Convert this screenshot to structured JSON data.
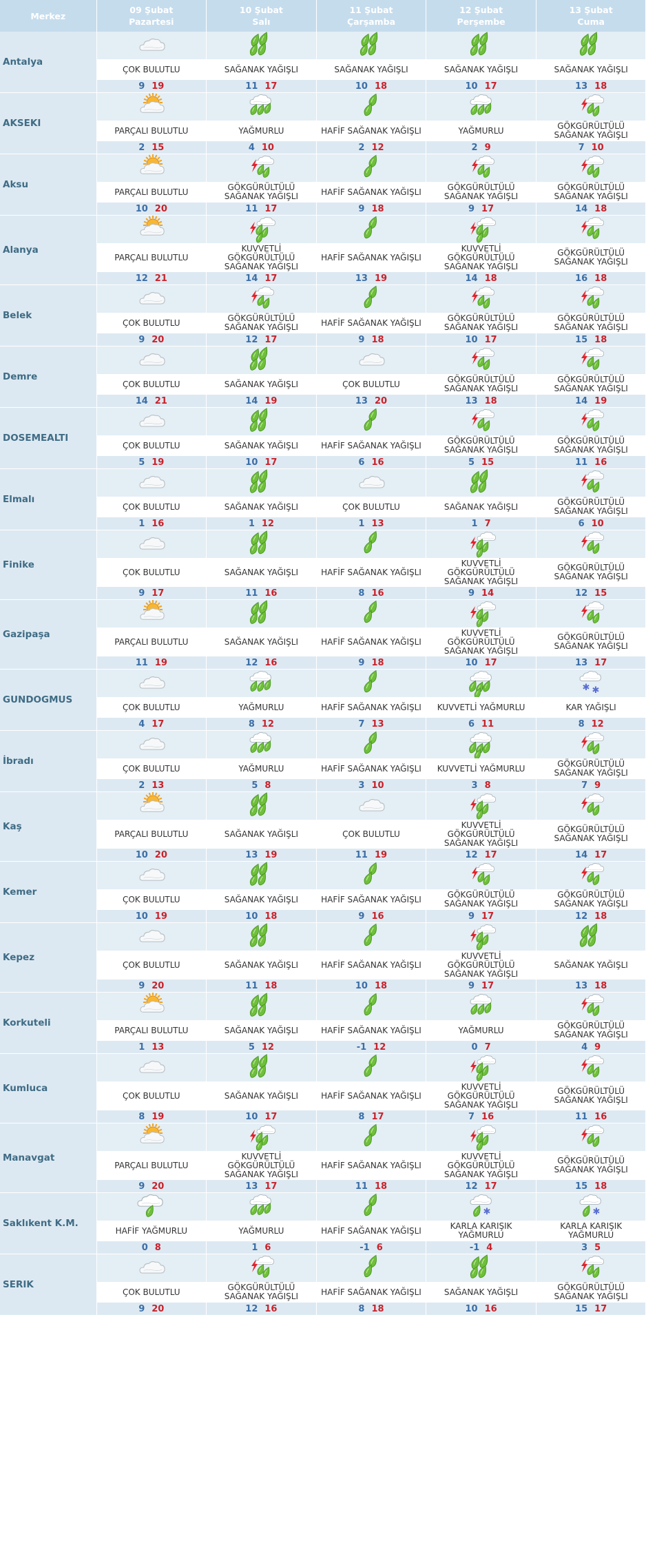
{
  "header": {
    "city_col": "Merkez",
    "days": [
      {
        "date": "09 Şubat",
        "day": "Pazartesi"
      },
      {
        "date": "10 Şubat",
        "day": "Salı"
      },
      {
        "date": "11 Şubat",
        "day": "Çarşamba"
      },
      {
        "date": "12 Şubat",
        "day": "Perşembe"
      },
      {
        "date": "13 Şubat",
        "day": "Cuma"
      }
    ]
  },
  "conditions": {
    "CB": {
      "text": "ÇOK BULUTLU",
      "icon": "cloudy-icon"
    },
    "PB": {
      "text": "PARÇALI BULUTLU",
      "icon": "partly-cloudy-icon"
    },
    "SY": {
      "text": "SAĞANAK YAĞIŞLI",
      "icon": "shower-icon"
    },
    "HSY": {
      "text": "HAFİF SAĞANAK YAĞIŞLI",
      "icon": "light-shower-icon"
    },
    "Y": {
      "text": "YAĞMURLU",
      "icon": "rain-icon"
    },
    "HY": {
      "text": "HAFİF YAĞMURLU",
      "icon": "light-rain-icon"
    },
    "KY": {
      "text": "KUVVETLİ YAĞMURLU",
      "icon": "heavy-rain-icon"
    },
    "GSY": {
      "text": "GÖKGÜRÜLTÜLÜ SAĞANAK YAĞIŞLI",
      "icon": "thunder-shower-icon"
    },
    "KGSY": {
      "text": "KUVVETLİ GÖKGÜRÜLTÜLÜ SAĞANAK YAĞIŞLI",
      "icon": "heavy-thunder-shower-icon"
    },
    "KAR": {
      "text": "KAR YAĞIŞLI",
      "icon": "snow-icon"
    },
    "KKY": {
      "text": "KARLA KARIŞIK YAĞMURLU",
      "icon": "sleet-icon"
    }
  },
  "cities": [
    {
      "name": "Antalya",
      "days": [
        {
          "c": "CB",
          "lo": "9",
          "hi": "19"
        },
        {
          "c": "SY",
          "lo": "11",
          "hi": "17"
        },
        {
          "c": "SY",
          "lo": "10",
          "hi": "18"
        },
        {
          "c": "SY",
          "lo": "10",
          "hi": "17"
        },
        {
          "c": "SY",
          "lo": "13",
          "hi": "18"
        }
      ]
    },
    {
      "name": "AKSEKI",
      "days": [
        {
          "c": "PB",
          "lo": "2",
          "hi": "15"
        },
        {
          "c": "Y",
          "lo": "4",
          "hi": "10"
        },
        {
          "c": "HSY",
          "lo": "2",
          "hi": "12"
        },
        {
          "c": "Y",
          "lo": "2",
          "hi": "9"
        },
        {
          "c": "GSY",
          "lo": "7",
          "hi": "10"
        }
      ]
    },
    {
      "name": "Aksu",
      "days": [
        {
          "c": "PB",
          "lo": "10",
          "hi": "20"
        },
        {
          "c": "GSY",
          "lo": "11",
          "hi": "17"
        },
        {
          "c": "HSY",
          "lo": "9",
          "hi": "18"
        },
        {
          "c": "GSY",
          "lo": "9",
          "hi": "17"
        },
        {
          "c": "GSY",
          "lo": "14",
          "hi": "18"
        }
      ]
    },
    {
      "name": "Alanya",
      "days": [
        {
          "c": "PB",
          "lo": "12",
          "hi": "21"
        },
        {
          "c": "KGSY",
          "lo": "14",
          "hi": "17"
        },
        {
          "c": "HSY",
          "lo": "13",
          "hi": "19"
        },
        {
          "c": "KGSY",
          "lo": "14",
          "hi": "18"
        },
        {
          "c": "GSY",
          "lo": "16",
          "hi": "18"
        }
      ]
    },
    {
      "name": "Belek",
      "days": [
        {
          "c": "CB",
          "lo": "9",
          "hi": "20"
        },
        {
          "c": "GSY",
          "lo": "12",
          "hi": "17"
        },
        {
          "c": "HSY",
          "lo": "9",
          "hi": "18"
        },
        {
          "c": "GSY",
          "lo": "10",
          "hi": "17"
        },
        {
          "c": "GSY",
          "lo": "15",
          "hi": "18"
        }
      ]
    },
    {
      "name": "Demre",
      "days": [
        {
          "c": "CB",
          "lo": "14",
          "hi": "21"
        },
        {
          "c": "SY",
          "lo": "14",
          "hi": "19"
        },
        {
          "c": "CB",
          "lo": "13",
          "hi": "20"
        },
        {
          "c": "GSY",
          "lo": "13",
          "hi": "18"
        },
        {
          "c": "GSY",
          "lo": "14",
          "hi": "19"
        }
      ]
    },
    {
      "name": "DOSEMEALTI",
      "days": [
        {
          "c": "CB",
          "lo": "5",
          "hi": "19"
        },
        {
          "c": "SY",
          "lo": "10",
          "hi": "17"
        },
        {
          "c": "HSY",
          "lo": "6",
          "hi": "16"
        },
        {
          "c": "GSY",
          "lo": "5",
          "hi": "15"
        },
        {
          "c": "GSY",
          "lo": "11",
          "hi": "16"
        }
      ]
    },
    {
      "name": "Elmalı",
      "days": [
        {
          "c": "CB",
          "lo": "1",
          "hi": "16"
        },
        {
          "c": "SY",
          "lo": "1",
          "hi": "12"
        },
        {
          "c": "CB",
          "lo": "1",
          "hi": "13"
        },
        {
          "c": "SY",
          "lo": "1",
          "hi": "7"
        },
        {
          "c": "GSY",
          "lo": "6",
          "hi": "10"
        }
      ]
    },
    {
      "name": "Finike",
      "days": [
        {
          "c": "CB",
          "lo": "9",
          "hi": "17"
        },
        {
          "c": "SY",
          "lo": "11",
          "hi": "16"
        },
        {
          "c": "HSY",
          "lo": "8",
          "hi": "16"
        },
        {
          "c": "KGSY",
          "lo": "9",
          "hi": "14"
        },
        {
          "c": "GSY",
          "lo": "12",
          "hi": "15"
        }
      ]
    },
    {
      "name": "Gazipaşa",
      "days": [
        {
          "c": "PB",
          "lo": "11",
          "hi": "19"
        },
        {
          "c": "SY",
          "lo": "12",
          "hi": "16"
        },
        {
          "c": "HSY",
          "lo": "9",
          "hi": "18"
        },
        {
          "c": "KGSY",
          "lo": "10",
          "hi": "17"
        },
        {
          "c": "GSY",
          "lo": "13",
          "hi": "17"
        }
      ]
    },
    {
      "name": "GUNDOGMUS",
      "days": [
        {
          "c": "CB",
          "lo": "4",
          "hi": "17"
        },
        {
          "c": "Y",
          "lo": "8",
          "hi": "12"
        },
        {
          "c": "HSY",
          "lo": "7",
          "hi": "13"
        },
        {
          "c": "KY",
          "lo": "6",
          "hi": "11"
        },
        {
          "c": "KAR",
          "lo": "8",
          "hi": "12"
        }
      ]
    },
    {
      "name": "İbradı",
      "days": [
        {
          "c": "CB",
          "lo": "2",
          "hi": "13"
        },
        {
          "c": "Y",
          "lo": "5",
          "hi": "8"
        },
        {
          "c": "HSY",
          "lo": "3",
          "hi": "10"
        },
        {
          "c": "KY",
          "lo": "3",
          "hi": "8"
        },
        {
          "c": "GSY",
          "lo": "7",
          "hi": "9"
        }
      ]
    },
    {
      "name": "Kaş",
      "days": [
        {
          "c": "PB",
          "lo": "10",
          "hi": "20"
        },
        {
          "c": "SY",
          "lo": "13",
          "hi": "19"
        },
        {
          "c": "CB",
          "lo": "11",
          "hi": "19"
        },
        {
          "c": "KGSY",
          "lo": "12",
          "hi": "17"
        },
        {
          "c": "GSY",
          "lo": "14",
          "hi": "17"
        }
      ]
    },
    {
      "name": "Kemer",
      "days": [
        {
          "c": "CB",
          "lo": "10",
          "hi": "19"
        },
        {
          "c": "SY",
          "lo": "10",
          "hi": "18"
        },
        {
          "c": "HSY",
          "lo": "9",
          "hi": "16"
        },
        {
          "c": "GSY",
          "lo": "9",
          "hi": "17"
        },
        {
          "c": "GSY",
          "lo": "12",
          "hi": "18"
        }
      ]
    },
    {
      "name": "Kepez",
      "days": [
        {
          "c": "CB",
          "lo": "9",
          "hi": "20"
        },
        {
          "c": "SY",
          "lo": "11",
          "hi": "18"
        },
        {
          "c": "HSY",
          "lo": "10",
          "hi": "18"
        },
        {
          "c": "KGSY",
          "lo": "9",
          "hi": "17"
        },
        {
          "c": "SY",
          "lo": "13",
          "hi": "18"
        }
      ]
    },
    {
      "name": "Korkuteli",
      "days": [
        {
          "c": "PB",
          "lo": "1",
          "hi": "13"
        },
        {
          "c": "SY",
          "lo": "5",
          "hi": "12"
        },
        {
          "c": "HSY",
          "lo": "-1",
          "hi": "12"
        },
        {
          "c": "Y",
          "lo": "0",
          "hi": "7"
        },
        {
          "c": "GSY",
          "lo": "4",
          "hi": "9"
        }
      ]
    },
    {
      "name": "Kumluca",
      "days": [
        {
          "c": "CB",
          "lo": "8",
          "hi": "19"
        },
        {
          "c": "SY",
          "lo": "10",
          "hi": "17"
        },
        {
          "c": "HSY",
          "lo": "8",
          "hi": "17"
        },
        {
          "c": "KGSY",
          "lo": "7",
          "hi": "16"
        },
        {
          "c": "GSY",
          "lo": "11",
          "hi": "16"
        }
      ]
    },
    {
      "name": "Manavgat",
      "days": [
        {
          "c": "PB",
          "lo": "9",
          "hi": "20"
        },
        {
          "c": "KGSY",
          "lo": "13",
          "hi": "17"
        },
        {
          "c": "HSY",
          "lo": "11",
          "hi": "18"
        },
        {
          "c": "KGSY",
          "lo": "12",
          "hi": "17"
        },
        {
          "c": "GSY",
          "lo": "15",
          "hi": "18"
        }
      ]
    },
    {
      "name": "Saklıkent K.M.",
      "days": [
        {
          "c": "HY",
          "lo": "0",
          "hi": "8"
        },
        {
          "c": "Y",
          "lo": "1",
          "hi": "6"
        },
        {
          "c": "HSY",
          "lo": "-1",
          "hi": "6"
        },
        {
          "c": "KKY",
          "lo": "-1",
          "hi": "4"
        },
        {
          "c": "KKY",
          "lo": "3",
          "hi": "5"
        }
      ]
    },
    {
      "name": "SERIK",
      "days": [
        {
          "c": "CB",
          "lo": "9",
          "hi": "20"
        },
        {
          "c": "GSY",
          "lo": "12",
          "hi": "16"
        },
        {
          "c": "HSY",
          "lo": "8",
          "hi": "18"
        },
        {
          "c": "SY",
          "lo": "10",
          "hi": "16"
        },
        {
          "c": "GSY",
          "lo": "15",
          "hi": "17"
        }
      ]
    }
  ]
}
